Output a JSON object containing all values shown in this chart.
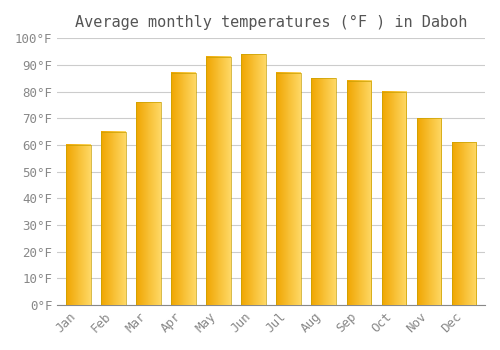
{
  "title": "Average monthly temperatures (°F ) in Daboh",
  "months": [
    "Jan",
    "Feb",
    "Mar",
    "Apr",
    "May",
    "Jun",
    "Jul",
    "Aug",
    "Sep",
    "Oct",
    "Nov",
    "Dec"
  ],
  "values": [
    60,
    65,
    76,
    87,
    93,
    94,
    87,
    85,
    84,
    80,
    70,
    61
  ],
  "bar_color_left": "#F0A500",
  "bar_color_right": "#FFD966",
  "bar_edge_color": "#C8A000",
  "ylim": [
    0,
    100
  ],
  "yticks": [
    0,
    10,
    20,
    30,
    40,
    50,
    60,
    70,
    80,
    90,
    100
  ],
  "ytick_labels": [
    "0°F",
    "10°F",
    "20°F",
    "30°F",
    "40°F",
    "50°F",
    "60°F",
    "70°F",
    "80°F",
    "90°F",
    "100°F"
  ],
  "background_color": "#ffffff",
  "grid_color": "#cccccc",
  "title_fontsize": 11,
  "tick_fontsize": 9,
  "font_family": "monospace",
  "bar_width": 0.7
}
